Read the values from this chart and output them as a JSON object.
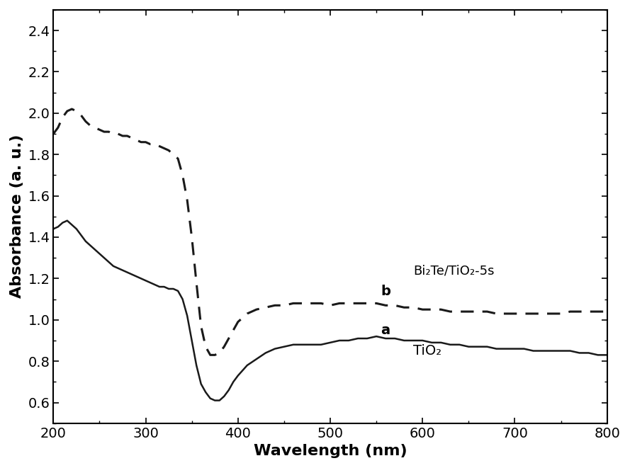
{
  "title": "",
  "xlabel": "Wavelength (nm)",
  "ylabel": "Absorbance (a. u.)",
  "xlim": [
    200,
    800
  ],
  "ylim": [
    0.5,
    2.5
  ],
  "yticks": [
    0.6,
    0.8,
    1.0,
    1.2,
    1.4,
    1.6,
    1.8,
    2.0,
    2.2,
    2.4
  ],
  "xticks": [
    200,
    300,
    400,
    500,
    600,
    700,
    800
  ],
  "label_a": "a",
  "label_b": "b",
  "annotation_a": "TiO₂",
  "annotation_b": "Bi₂Te/TiO₂-5s",
  "line_color": "#1a1a1a",
  "background_color": "#ffffff",
  "curve_a_x": [
    200,
    205,
    210,
    215,
    220,
    225,
    230,
    235,
    240,
    245,
    250,
    255,
    260,
    265,
    270,
    275,
    280,
    285,
    290,
    295,
    300,
    305,
    310,
    315,
    320,
    325,
    330,
    335,
    340,
    345,
    350,
    355,
    360,
    365,
    370,
    375,
    380,
    385,
    390,
    395,
    400,
    410,
    420,
    430,
    440,
    450,
    460,
    470,
    480,
    490,
    500,
    510,
    520,
    530,
    540,
    550,
    560,
    570,
    580,
    590,
    600,
    610,
    620,
    630,
    640,
    650,
    660,
    670,
    680,
    690,
    700,
    710,
    720,
    730,
    740,
    750,
    760,
    770,
    780,
    790,
    800
  ],
  "curve_a_y": [
    1.44,
    1.45,
    1.47,
    1.48,
    1.46,
    1.44,
    1.41,
    1.38,
    1.36,
    1.34,
    1.32,
    1.3,
    1.28,
    1.26,
    1.25,
    1.24,
    1.23,
    1.22,
    1.21,
    1.2,
    1.19,
    1.18,
    1.17,
    1.16,
    1.16,
    1.15,
    1.15,
    1.14,
    1.1,
    1.02,
    0.9,
    0.78,
    0.69,
    0.65,
    0.62,
    0.61,
    0.61,
    0.63,
    0.66,
    0.7,
    0.73,
    0.78,
    0.81,
    0.84,
    0.86,
    0.87,
    0.88,
    0.88,
    0.88,
    0.88,
    0.89,
    0.9,
    0.9,
    0.91,
    0.91,
    0.92,
    0.91,
    0.91,
    0.9,
    0.9,
    0.9,
    0.89,
    0.89,
    0.88,
    0.88,
    0.87,
    0.87,
    0.87,
    0.86,
    0.86,
    0.86,
    0.86,
    0.85,
    0.85,
    0.85,
    0.85,
    0.85,
    0.84,
    0.84,
    0.83,
    0.83
  ],
  "curve_b_x": [
    200,
    205,
    210,
    215,
    220,
    225,
    230,
    235,
    240,
    245,
    250,
    255,
    260,
    265,
    270,
    275,
    280,
    285,
    290,
    295,
    300,
    305,
    310,
    315,
    320,
    325,
    330,
    335,
    340,
    345,
    350,
    355,
    360,
    365,
    370,
    375,
    380,
    385,
    390,
    395,
    400,
    410,
    420,
    430,
    440,
    450,
    460,
    470,
    480,
    490,
    500,
    510,
    520,
    530,
    540,
    550,
    560,
    570,
    580,
    590,
    600,
    610,
    620,
    630,
    640,
    650,
    660,
    670,
    680,
    690,
    700,
    710,
    720,
    730,
    740,
    750,
    760,
    770,
    780,
    790,
    800
  ],
  "curve_b_y": [
    1.9,
    1.93,
    1.98,
    2.01,
    2.02,
    2.01,
    1.99,
    1.96,
    1.94,
    1.93,
    1.92,
    1.91,
    1.91,
    1.9,
    1.9,
    1.89,
    1.89,
    1.88,
    1.87,
    1.86,
    1.86,
    1.85,
    1.85,
    1.84,
    1.83,
    1.82,
    1.8,
    1.78,
    1.7,
    1.58,
    1.4,
    1.18,
    0.97,
    0.87,
    0.83,
    0.83,
    0.84,
    0.87,
    0.91,
    0.95,
    0.99,
    1.03,
    1.05,
    1.06,
    1.07,
    1.07,
    1.08,
    1.08,
    1.08,
    1.08,
    1.07,
    1.08,
    1.08,
    1.08,
    1.08,
    1.08,
    1.07,
    1.07,
    1.06,
    1.06,
    1.05,
    1.05,
    1.05,
    1.04,
    1.04,
    1.04,
    1.04,
    1.04,
    1.03,
    1.03,
    1.03,
    1.03,
    1.03,
    1.03,
    1.03,
    1.03,
    1.04,
    1.04,
    1.04,
    1.04,
    1.04
  ]
}
